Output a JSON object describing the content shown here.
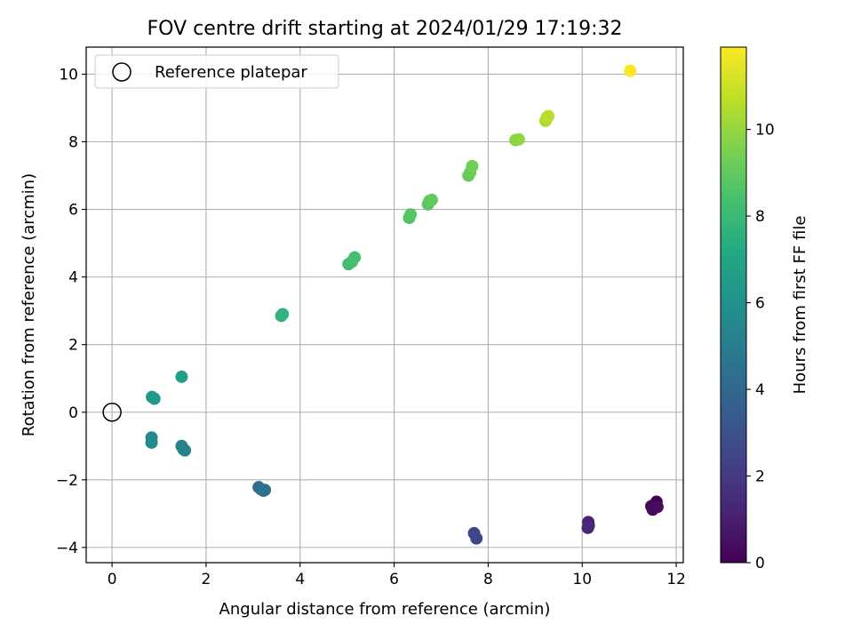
{
  "chart_data": {
    "type": "scatter",
    "title": "FOV centre drift starting at 2024/01/29 17:19:32",
    "xlabel": "Angular distance from reference (arcmin)",
    "ylabel": "Rotation from reference (arcmin)",
    "xlim": [
      -0.55,
      12.15
    ],
    "ylim": [
      -4.45,
      10.8
    ],
    "xticks": [
      0,
      2,
      4,
      6,
      8,
      10,
      12
    ],
    "yticks": [
      -4,
      -2,
      0,
      2,
      4,
      6,
      8,
      10
    ],
    "xtick_labels": [
      "0",
      "2",
      "4",
      "6",
      "8",
      "10",
      "12"
    ],
    "ytick_labels": [
      "−4",
      "−2",
      "0",
      "2",
      "4",
      "6",
      "8",
      "10"
    ],
    "grid": true,
    "legend": {
      "position": "upper-left",
      "label": "Reference platepar"
    },
    "reference_point": {
      "x": 0,
      "y": 0
    },
    "colorbar": {
      "label": "Hours from first FF file",
      "colormap": "viridis",
      "range": [
        0,
        11.9
      ],
      "ticks": [
        0,
        2,
        4,
        6,
        8,
        10
      ],
      "tick_labels": [
        "0",
        "2",
        "4",
        "6",
        "8",
        "10"
      ]
    },
    "points": [
      {
        "x": 11.58,
        "y": -2.65,
        "hours": 0.0
      },
      {
        "x": 11.55,
        "y": -2.8,
        "hours": 0.1
      },
      {
        "x": 11.47,
        "y": -2.78,
        "hours": 0.2
      },
      {
        "x": 11.5,
        "y": -2.88,
        "hours": 0.3
      },
      {
        "x": 11.6,
        "y": -2.8,
        "hours": 0.4
      },
      {
        "x": 10.13,
        "y": -3.25,
        "hours": 1.1
      },
      {
        "x": 10.12,
        "y": -3.42,
        "hours": 1.2
      },
      {
        "x": 10.14,
        "y": -3.35,
        "hours": 1.3
      },
      {
        "x": 7.7,
        "y": -3.58,
        "hours": 2.4
      },
      {
        "x": 7.75,
        "y": -3.73,
        "hours": 2.5
      },
      {
        "x": 3.12,
        "y": -2.22,
        "hours": 4.2
      },
      {
        "x": 3.17,
        "y": -2.28,
        "hours": 4.3
      },
      {
        "x": 3.25,
        "y": -2.3,
        "hours": 4.4
      },
      {
        "x": 3.22,
        "y": -2.32,
        "hours": 4.5
      },
      {
        "x": 1.52,
        "y": -1.1,
        "hours": 5.1
      },
      {
        "x": 1.48,
        "y": -1.0,
        "hours": 5.2
      },
      {
        "x": 1.55,
        "y": -1.13,
        "hours": 5.3
      },
      {
        "x": 0.84,
        "y": -0.75,
        "hours": 5.6
      },
      {
        "x": 0.84,
        "y": -0.9,
        "hours": 5.7
      },
      {
        "x": 0.85,
        "y": 0.45,
        "hours": 6.3
      },
      {
        "x": 0.9,
        "y": 0.4,
        "hours": 6.4
      },
      {
        "x": 1.48,
        "y": 1.05,
        "hours": 6.7
      },
      {
        "x": 3.6,
        "y": 2.85,
        "hours": 7.6
      },
      {
        "x": 3.63,
        "y": 2.9,
        "hours": 7.7
      },
      {
        "x": 5.03,
        "y": 4.38,
        "hours": 8.2
      },
      {
        "x": 5.1,
        "y": 4.45,
        "hours": 8.3
      },
      {
        "x": 5.16,
        "y": 4.58,
        "hours": 8.4
      },
      {
        "x": 6.32,
        "y": 5.75,
        "hours": 8.6
      },
      {
        "x": 6.35,
        "y": 5.85,
        "hours": 8.7
      },
      {
        "x": 6.72,
        "y": 6.15,
        "hours": 8.8
      },
      {
        "x": 6.75,
        "y": 6.25,
        "hours": 8.9
      },
      {
        "x": 6.8,
        "y": 6.28,
        "hours": 9.0
      },
      {
        "x": 7.58,
        "y": 7.0,
        "hours": 9.1
      },
      {
        "x": 7.62,
        "y": 7.1,
        "hours": 9.2
      },
      {
        "x": 7.66,
        "y": 7.28,
        "hours": 9.3
      },
      {
        "x": 8.58,
        "y": 8.05,
        "hours": 9.8
      },
      {
        "x": 8.65,
        "y": 8.07,
        "hours": 9.9
      },
      {
        "x": 9.22,
        "y": 8.62,
        "hours": 10.4
      },
      {
        "x": 9.25,
        "y": 8.72,
        "hours": 10.5
      },
      {
        "x": 9.28,
        "y": 8.76,
        "hours": 10.6
      },
      {
        "x": 11.02,
        "y": 10.1,
        "hours": 11.9
      }
    ]
  }
}
